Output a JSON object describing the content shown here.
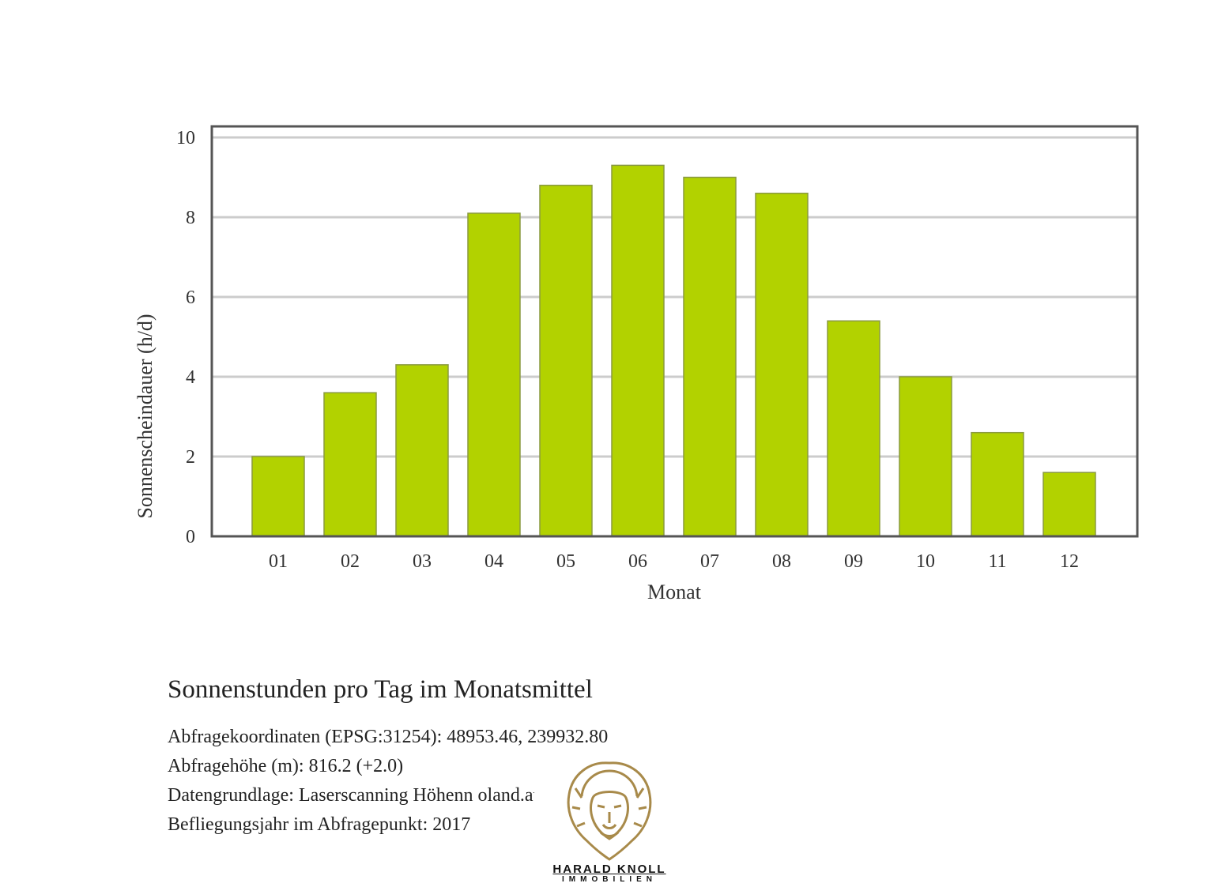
{
  "chart_data": {
    "type": "bar",
    "categories": [
      "01",
      "02",
      "03",
      "04",
      "05",
      "06",
      "07",
      "08",
      "09",
      "10",
      "11",
      "12"
    ],
    "values": [
      2.0,
      3.6,
      4.3,
      8.1,
      8.8,
      9.3,
      9.0,
      8.6,
      5.4,
      4.0,
      2.6,
      1.6
    ],
    "xlabel": "Monat",
    "ylabel": "Sonnenscheindauer (h/d)",
    "ylim": [
      0,
      10
    ],
    "yticks": [
      0,
      2,
      4,
      6,
      8,
      10
    ],
    "grid": true,
    "bar_color": "#b2d200"
  },
  "caption": {
    "title": "Sonnenstunden pro Tag im Monatsmittel",
    "lines": [
      "Abfragekoordinaten (EPSG:31254): 48953.46, 239932.80",
      "Abfragehöhe (m): 816.2 (+2.0)",
      "Datengrundlage: Laserscanning Höhenn                       oland.at",
      "Befliegungsjahr im Abfragepunkt: 2017"
    ]
  },
  "logo": {
    "name": "HARALD KNOLL",
    "sub": "IMMOBILIEN",
    "color": "#a88a4a"
  }
}
